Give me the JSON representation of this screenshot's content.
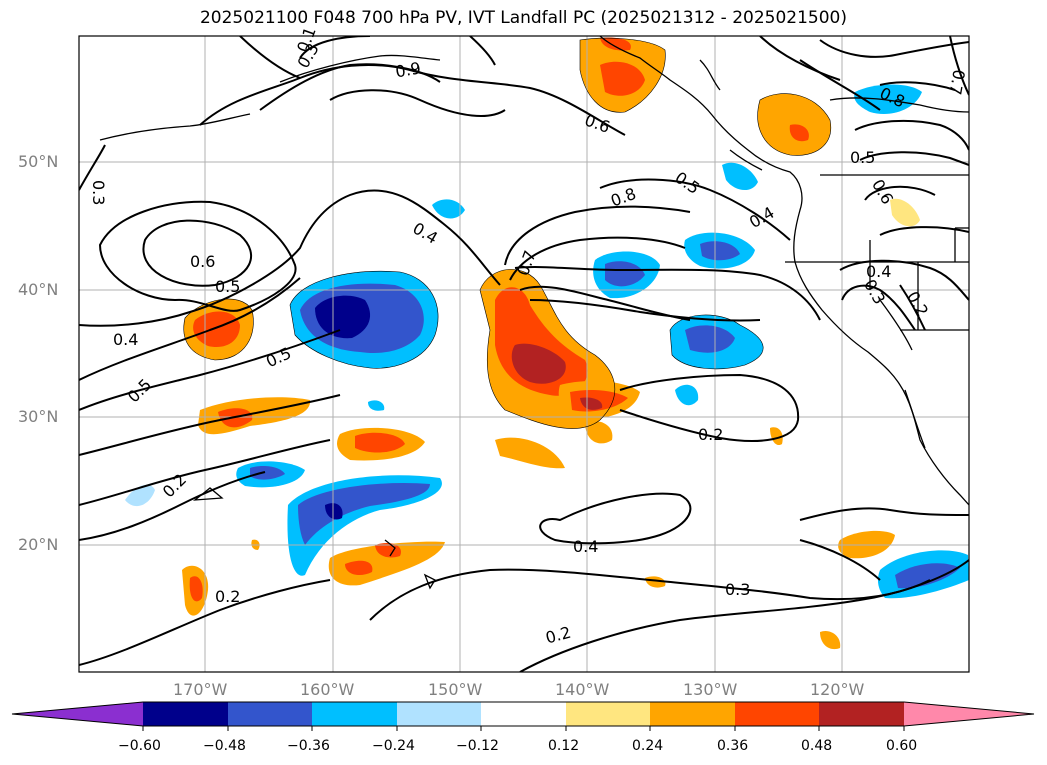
{
  "title": "2025021100 F048 700 hPa PV, IVT Landfall PC (2025021312 - 2025021500)",
  "lat_labels": [
    "50°N",
    "40°N",
    "30°N",
    "20°N"
  ],
  "lon_labels": [
    "170°W",
    "160°W",
    "150°W",
    "140°W",
    "130°W",
    "120°W"
  ],
  "contour_labels": [
    "0.6",
    "0.5",
    "0.4",
    "0.5",
    "0.5",
    "0.2",
    "0.2",
    "0.4",
    "0.7",
    "0.8",
    "0.6",
    "0.5",
    "0.4",
    "0.2",
    "0.4",
    "0.3",
    "0.2",
    "0.8",
    "0.5",
    "0.6",
    "0.4",
    "0.3",
    "0.2",
    "0.3",
    "0.9",
    "0.3",
    "0.7",
    "0.1"
  ],
  "colorbar": {
    "tick_labels": [
      "−0.60",
      "−0.48",
      "−0.36",
      "−0.24",
      "−0.12",
      "0.12",
      "0.24",
      "0.36",
      "0.48",
      "0.60"
    ],
    "colors": [
      "#8b2fd0",
      "#00008b",
      "#3355cc",
      "#00bfff",
      "#b0e2ff",
      "#ffffff",
      "#ffe680",
      "#ffa500",
      "#ff4500",
      "#b22222",
      "#ff88aa"
    ]
  }
}
